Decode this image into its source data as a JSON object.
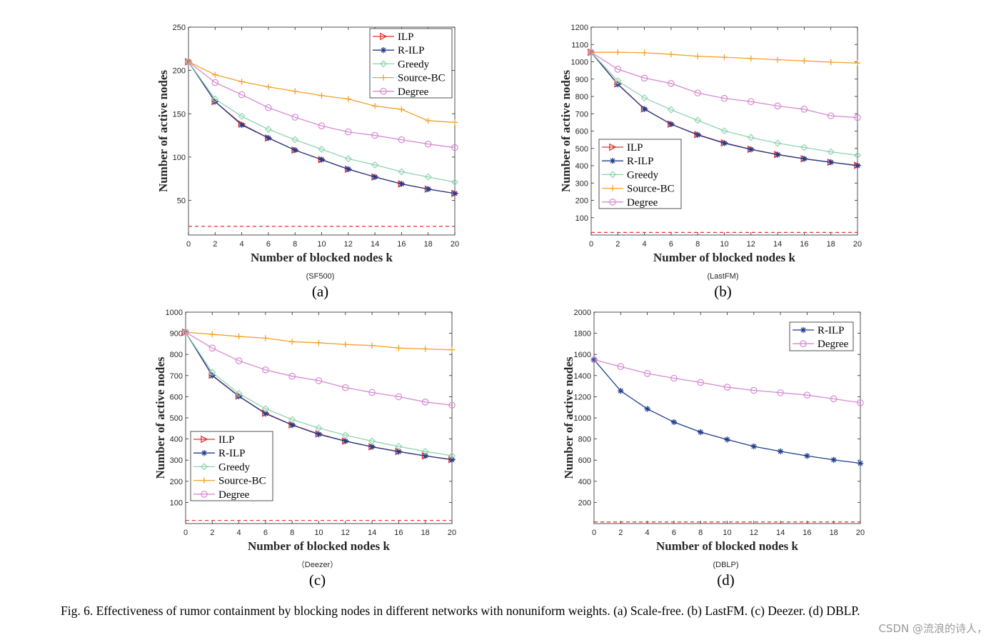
{
  "chart_data": [
    {
      "type": "line",
      "panel_letter": "(a)",
      "subtitle": "(SF500)",
      "xlabel": "Number of blocked nodes k",
      "ylabel": "Number of active nodes",
      "x": [
        0,
        2,
        4,
        6,
        8,
        10,
        12,
        14,
        16,
        18,
        20
      ],
      "xlim": [
        0,
        20
      ],
      "ylim": [
        10,
        250
      ],
      "yticks": [
        50,
        100,
        150,
        200,
        250
      ],
      "legend_position": "top-right",
      "baseline": 20,
      "series": [
        {
          "name": "ILP",
          "marker": "triangle-right",
          "values": [
            210,
            164,
            138,
            122,
            108,
            97,
            86,
            77,
            69,
            63,
            58
          ]
        },
        {
          "name": "R-ILP",
          "marker": "asterisk",
          "values": [
            210,
            164,
            137,
            122,
            108,
            97,
            86,
            77,
            69,
            63,
            58
          ]
        },
        {
          "name": "Greedy",
          "marker": "diamond",
          "values": [
            210,
            167,
            147,
            132,
            120,
            109,
            98,
            91,
            83,
            77,
            71
          ]
        },
        {
          "name": "Source-BC",
          "marker": "plus",
          "values": [
            210,
            195,
            187,
            181,
            176,
            171,
            167,
            159,
            155,
            142,
            140
          ]
        },
        {
          "name": "Degree",
          "marker": "circle",
          "values": [
            210,
            186,
            172,
            157,
            146,
            136,
            129,
            125,
            120,
            115,
            111
          ]
        }
      ]
    },
    {
      "type": "line",
      "panel_letter": "(b)",
      "subtitle": "(LastFM)",
      "xlabel": "Number of blocked nodes k",
      "ylabel": "Number of active nodes",
      "x": [
        0,
        2,
        4,
        6,
        8,
        10,
        12,
        14,
        16,
        18,
        20
      ],
      "xlim": [
        0,
        20
      ],
      "ylim": [
        0,
        1200
      ],
      "yticks": [
        100,
        200,
        300,
        400,
        500,
        600,
        700,
        800,
        900,
        1000,
        1100,
        1200
      ],
      "legend_position": "bottom-left",
      "baseline": 15,
      "series": [
        {
          "name": "ILP",
          "marker": "triangle-right",
          "values": [
            1055,
            872,
            728,
            640,
            580,
            532,
            495,
            465,
            440,
            420,
            402
          ]
        },
        {
          "name": "R-ILP",
          "marker": "asterisk",
          "values": [
            1055,
            870,
            727,
            640,
            578,
            530,
            494,
            464,
            440,
            420,
            400
          ]
        },
        {
          "name": "Greedy",
          "marker": "diamond",
          "values": [
            1055,
            890,
            792,
            723,
            662,
            601,
            563,
            530,
            505,
            480,
            460
          ]
        },
        {
          "name": "Source-BC",
          "marker": "plus",
          "values": [
            1055,
            1055,
            1052,
            1043,
            1032,
            1026,
            1019,
            1012,
            1005,
            998,
            993
          ]
        },
        {
          "name": "Degree",
          "marker": "circle",
          "values": [
            1055,
            957,
            906,
            875,
            820,
            789,
            770,
            745,
            726,
            688,
            678
          ]
        }
      ]
    },
    {
      "type": "line",
      "panel_letter": "(c)",
      "subtitle": "（Deezer）",
      "xlabel": "Number of blocked nodes k",
      "ylabel": "Number of active nodes",
      "x": [
        0,
        2,
        4,
        6,
        8,
        10,
        12,
        14,
        16,
        18,
        20
      ],
      "xlim": [
        0,
        20
      ],
      "ylim": [
        0,
        1000
      ],
      "yticks": [
        100,
        200,
        300,
        400,
        500,
        600,
        700,
        800,
        900,
        1000
      ],
      "legend_position": "bottom-left",
      "baseline": 15,
      "series": [
        {
          "name": "ILP",
          "marker": "triangle-right",
          "values": [
            905,
            702,
            603,
            522,
            467,
            424,
            390,
            363,
            341,
            320,
            303
          ]
        },
        {
          "name": "R-ILP",
          "marker": "asterisk",
          "values": [
            905,
            700,
            602,
            520,
            466,
            422,
            390,
            363,
            340,
            320,
            302
          ]
        },
        {
          "name": "Greedy",
          "marker": "diamond",
          "values": [
            905,
            715,
            615,
            543,
            492,
            452,
            418,
            390,
            365,
            341,
            321
          ]
        },
        {
          "name": "Source-BC",
          "marker": "plus",
          "values": [
            905,
            895,
            885,
            877,
            860,
            855,
            847,
            842,
            830,
            826,
            822
          ]
        },
        {
          "name": "Degree",
          "marker": "circle",
          "values": [
            905,
            830,
            770,
            727,
            697,
            676,
            643,
            620,
            600,
            575,
            560
          ]
        }
      ]
    },
    {
      "type": "line",
      "panel_letter": "(d)",
      "subtitle": "(DBLP)",
      "xlabel": "Number of blocked nodes k",
      "ylabel": "Number of active nodes",
      "x": [
        0,
        2,
        4,
        6,
        8,
        10,
        12,
        14,
        16,
        18,
        20
      ],
      "xlim": [
        0,
        20
      ],
      "ylim": [
        0,
        2000
      ],
      "yticks": [
        200,
        400,
        600,
        800,
        1000,
        1200,
        1400,
        1600,
        1800,
        2000
      ],
      "legend_position": "top-right",
      "baseline": 15,
      "series": [
        {
          "name": "R-ILP",
          "marker": "asterisk",
          "values": [
            1550,
            1255,
            1085,
            960,
            865,
            795,
            730,
            683,
            640,
            603,
            570
          ]
        },
        {
          "name": "Degree",
          "marker": "circle",
          "values": [
            1550,
            1485,
            1420,
            1375,
            1335,
            1290,
            1260,
            1238,
            1215,
            1180,
            1143
          ]
        }
      ]
    }
  ],
  "series_colors": {
    "ILP": "#e8312f",
    "R-ILP": "#1f3d8c",
    "Greedy": "#8fd4b0",
    "Source-BC": "#f5a02a",
    "Degree": "#d78ad2",
    "baseline": "#e8312f"
  },
  "caption": "Fig. 6.   Effectiveness of rumor containment by blocking nodes in different networks with nonuniform weights. (a) Scale-free. (b) LastFM. (c) Deezer. (d) DBLP.",
  "watermark": "CSDN @流浪的诗人，"
}
